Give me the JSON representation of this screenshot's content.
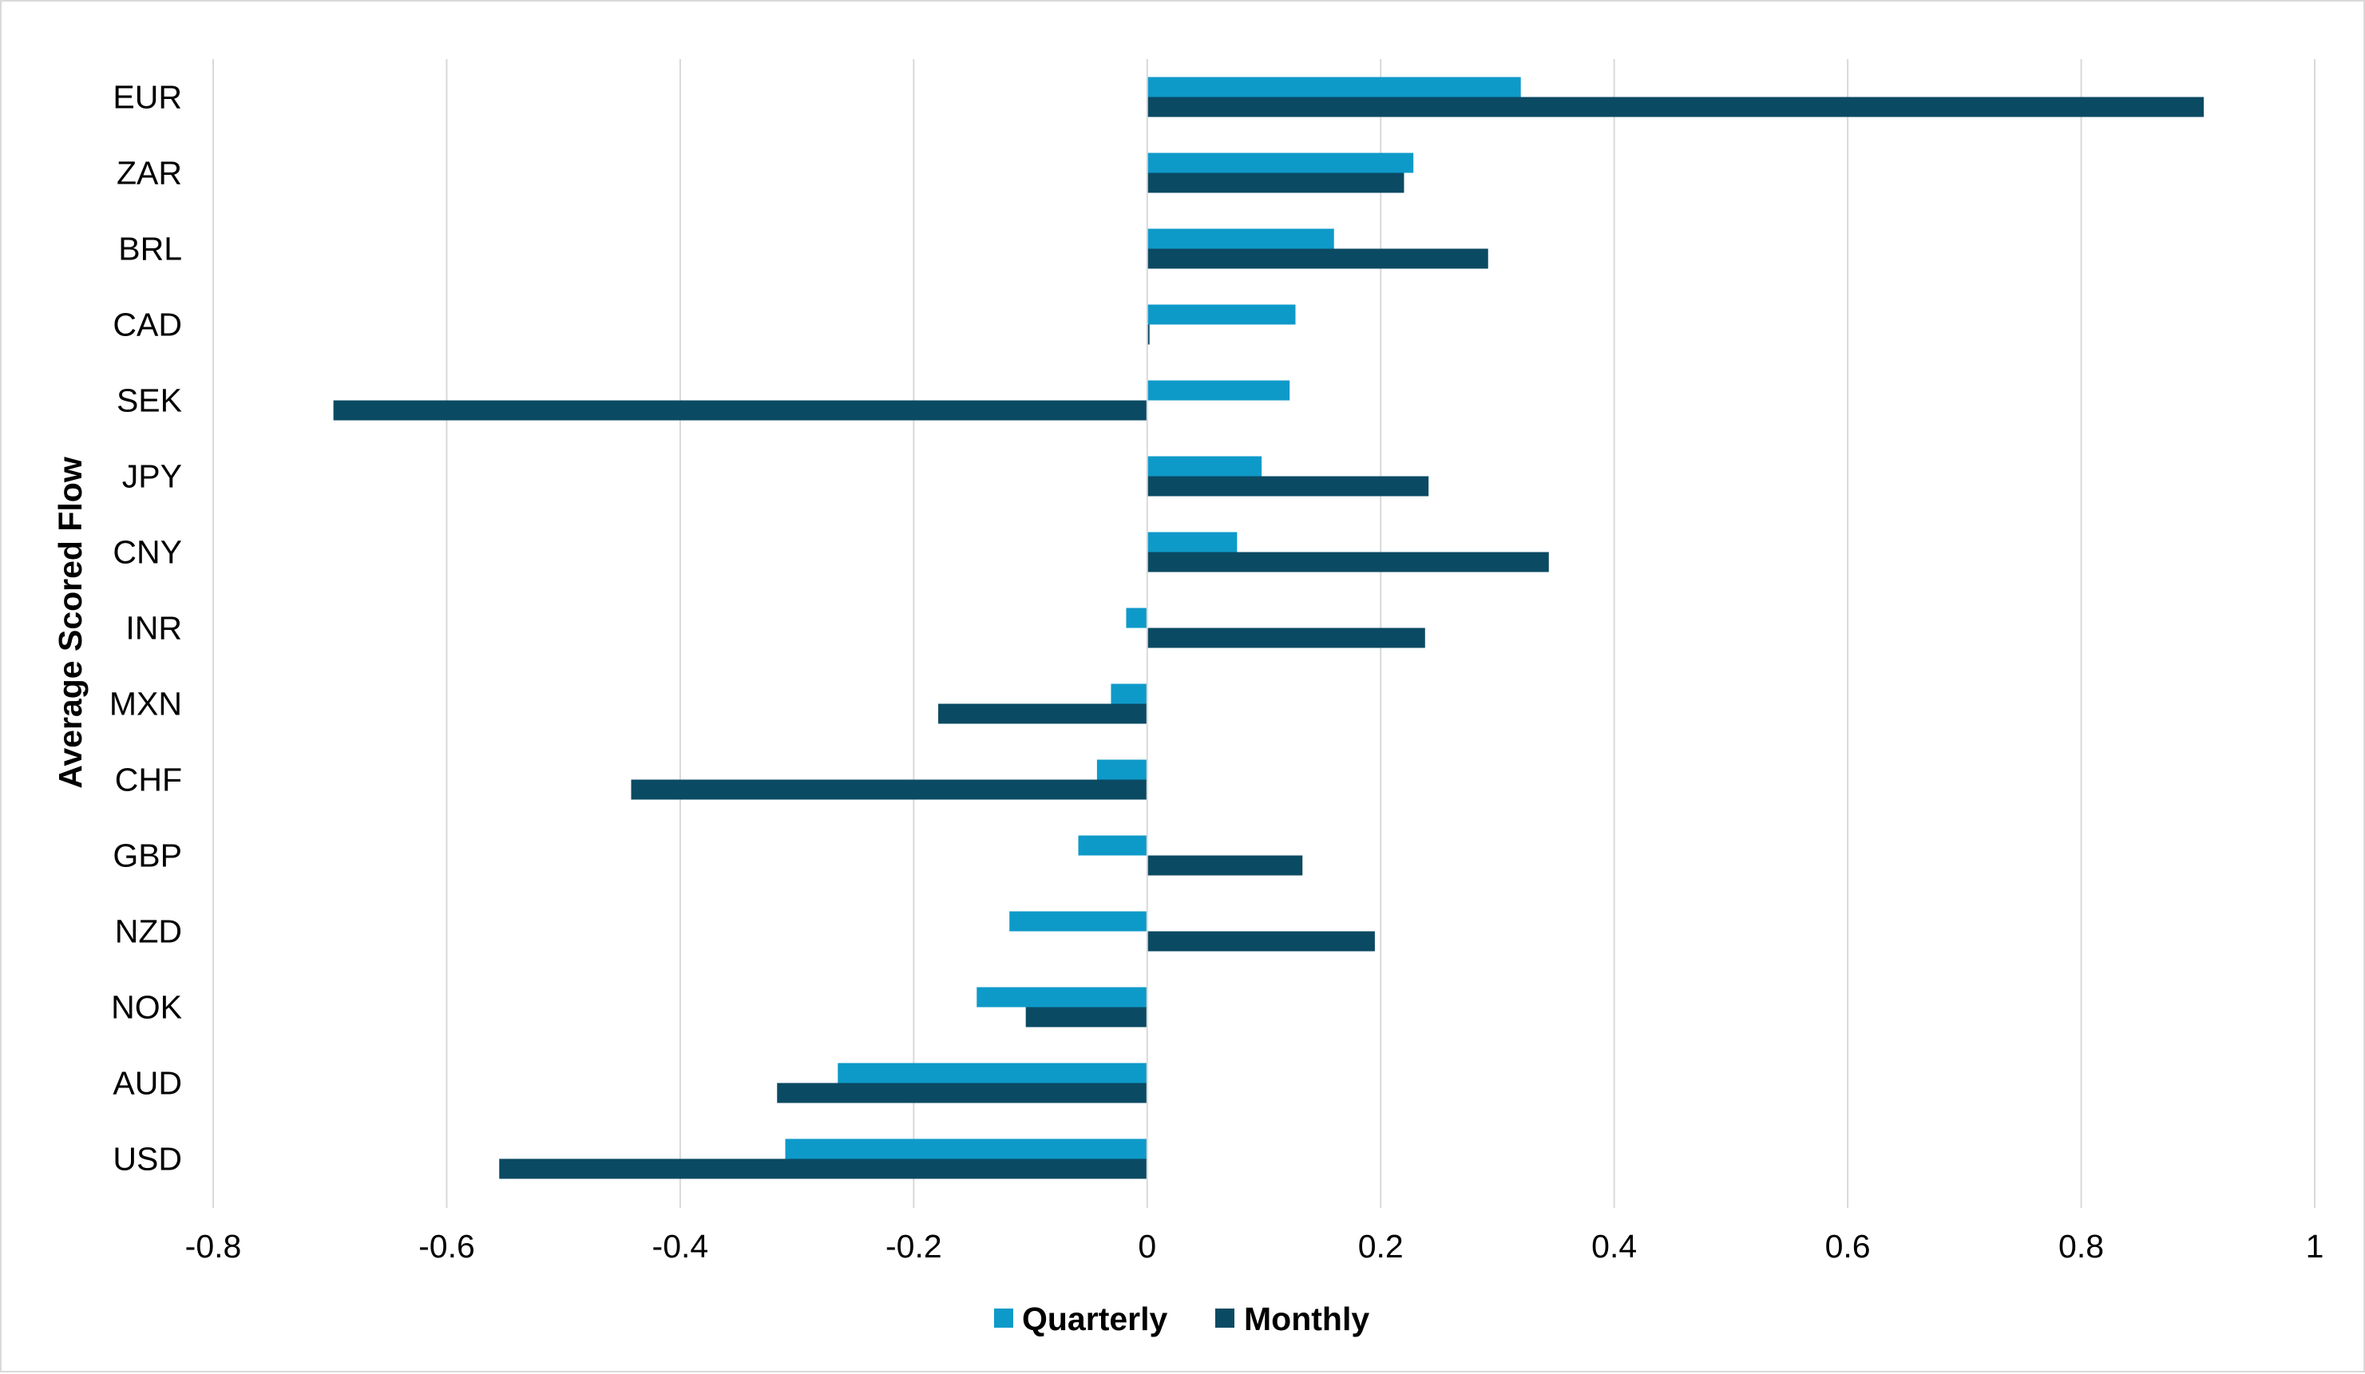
{
  "chart_data": {
    "type": "bar",
    "orientation": "horizontal",
    "title": "",
    "xlabel": "",
    "ylabel": "Average Scored Flow",
    "xlim": [
      -0.8,
      1
    ],
    "xticks": [
      "-0.8",
      "-0.6",
      "-0.4",
      "-0.2",
      "0",
      "0.2",
      "0.4",
      "0.6",
      "0.8",
      "1"
    ],
    "xtick_values": [
      -0.8,
      -0.6,
      -0.4,
      -0.2,
      0,
      0.2,
      0.4,
      0.6,
      0.8,
      1
    ],
    "grid": "vertical",
    "legend_position": "bottom-center",
    "categories": [
      "EUR",
      "ZAR",
      "BRL",
      "CAD",
      "SEK",
      "JPY",
      "CNY",
      "INR",
      "MXN",
      "CHF",
      "GBP",
      "NZD",
      "NOK",
      "AUD",
      "USD"
    ],
    "series": [
      {
        "name": "Quarterly",
        "color": "#0e9ac9",
        "values": [
          0.32,
          0.228,
          0.16,
          0.127,
          0.122,
          0.098,
          0.077,
          -0.018,
          -0.031,
          -0.043,
          -0.059,
          -0.118,
          -0.146,
          -0.265,
          -0.31
        ]
      },
      {
        "name": "Monthly",
        "color": "#0b4a63",
        "values": [
          0.905,
          0.22,
          0.292,
          0.002,
          -0.697,
          0.241,
          0.344,
          0.238,
          -0.179,
          -0.442,
          0.133,
          0.195,
          -0.104,
          -0.317,
          -0.555
        ]
      }
    ]
  }
}
